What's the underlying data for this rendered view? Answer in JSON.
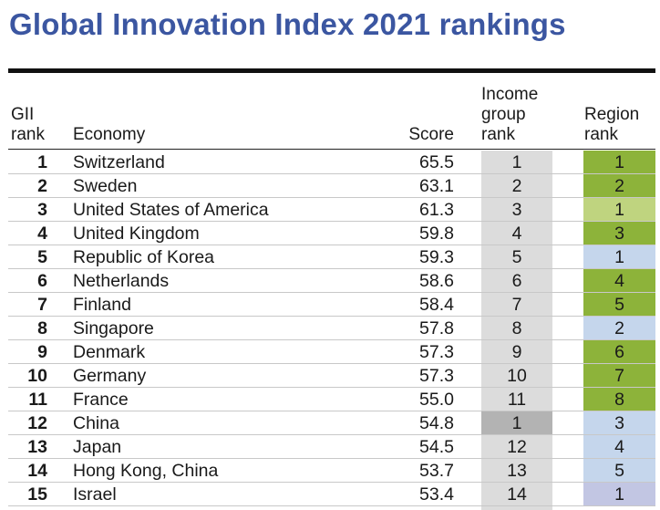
{
  "title": "Global Innovation Index 2021 rankings",
  "headers": {
    "gii_rank_1": "GII",
    "gii_rank_2": "rank",
    "economy": "Economy",
    "score": "Score",
    "income_1": "Income",
    "income_2": "group",
    "income_3": "rank",
    "region_1": "Region",
    "region_2": "rank"
  },
  "colors": {
    "title": "#3b56a1",
    "income_default": "#dcdcdc",
    "income_highlight": "#b3b3b3",
    "region_dark_green": "#8db33a",
    "region_light_green": "#bfd47f",
    "region_light_blue": "#c5d6ec",
    "region_lavender": "#c2c6e3"
  },
  "rows": [
    {
      "rank": "1",
      "economy": "Switzerland",
      "score": "65.5",
      "income_rank": "1",
      "region_rank": "1",
      "region_color": "#8db33a",
      "income_color": "#dcdcdc"
    },
    {
      "rank": "2",
      "economy": "Sweden",
      "score": "63.1",
      "income_rank": "2",
      "region_rank": "2",
      "region_color": "#8db33a",
      "income_color": "#dcdcdc"
    },
    {
      "rank": "3",
      "economy": "United States of America",
      "score": "61.3",
      "income_rank": "3",
      "region_rank": "1",
      "region_color": "#bfd47f",
      "income_color": "#dcdcdc"
    },
    {
      "rank": "4",
      "economy": "United Kingdom",
      "score": "59.8",
      "income_rank": "4",
      "region_rank": "3",
      "region_color": "#8db33a",
      "income_color": "#dcdcdc"
    },
    {
      "rank": "5",
      "economy": "Republic of Korea",
      "score": "59.3",
      "income_rank": "5",
      "region_rank": "1",
      "region_color": "#c5d6ec",
      "income_color": "#dcdcdc"
    },
    {
      "rank": "6",
      "economy": "Netherlands",
      "score": "58.6",
      "income_rank": "6",
      "region_rank": "4",
      "region_color": "#8db33a",
      "income_color": "#dcdcdc"
    },
    {
      "rank": "7",
      "economy": "Finland",
      "score": "58.4",
      "income_rank": "7",
      "region_rank": "5",
      "region_color": "#8db33a",
      "income_color": "#dcdcdc"
    },
    {
      "rank": "8",
      "economy": "Singapore",
      "score": "57.8",
      "income_rank": "8",
      "region_rank": "2",
      "region_color": "#c5d6ec",
      "income_color": "#dcdcdc"
    },
    {
      "rank": "9",
      "economy": "Denmark",
      "score": "57.3",
      "income_rank": "9",
      "region_rank": "6",
      "region_color": "#8db33a",
      "income_color": "#dcdcdc"
    },
    {
      "rank": "10",
      "economy": "Germany",
      "score": "57.3",
      "income_rank": "10",
      "region_rank": "7",
      "region_color": "#8db33a",
      "income_color": "#dcdcdc"
    },
    {
      "rank": "11",
      "economy": "France",
      "score": "55.0",
      "income_rank": "11",
      "region_rank": "8",
      "region_color": "#8db33a",
      "income_color": "#dcdcdc"
    },
    {
      "rank": "12",
      "economy": "China",
      "score": "54.8",
      "income_rank": "1",
      "region_rank": "3",
      "region_color": "#c5d6ec",
      "income_color": "#b3b3b3"
    },
    {
      "rank": "13",
      "economy": "Japan",
      "score": "54.5",
      "income_rank": "12",
      "region_rank": "4",
      "region_color": "#c5d6ec",
      "income_color": "#dcdcdc"
    },
    {
      "rank": "14",
      "economy": "Hong Kong, China",
      "score": "53.7",
      "income_rank": "13",
      "region_rank": "5",
      "region_color": "#c5d6ec",
      "income_color": "#dcdcdc"
    },
    {
      "rank": "15",
      "economy": "Israel",
      "score": "53.4",
      "income_rank": "14",
      "region_rank": "1",
      "region_color": "#c2c6e3",
      "income_color": "#dcdcdc"
    }
  ]
}
